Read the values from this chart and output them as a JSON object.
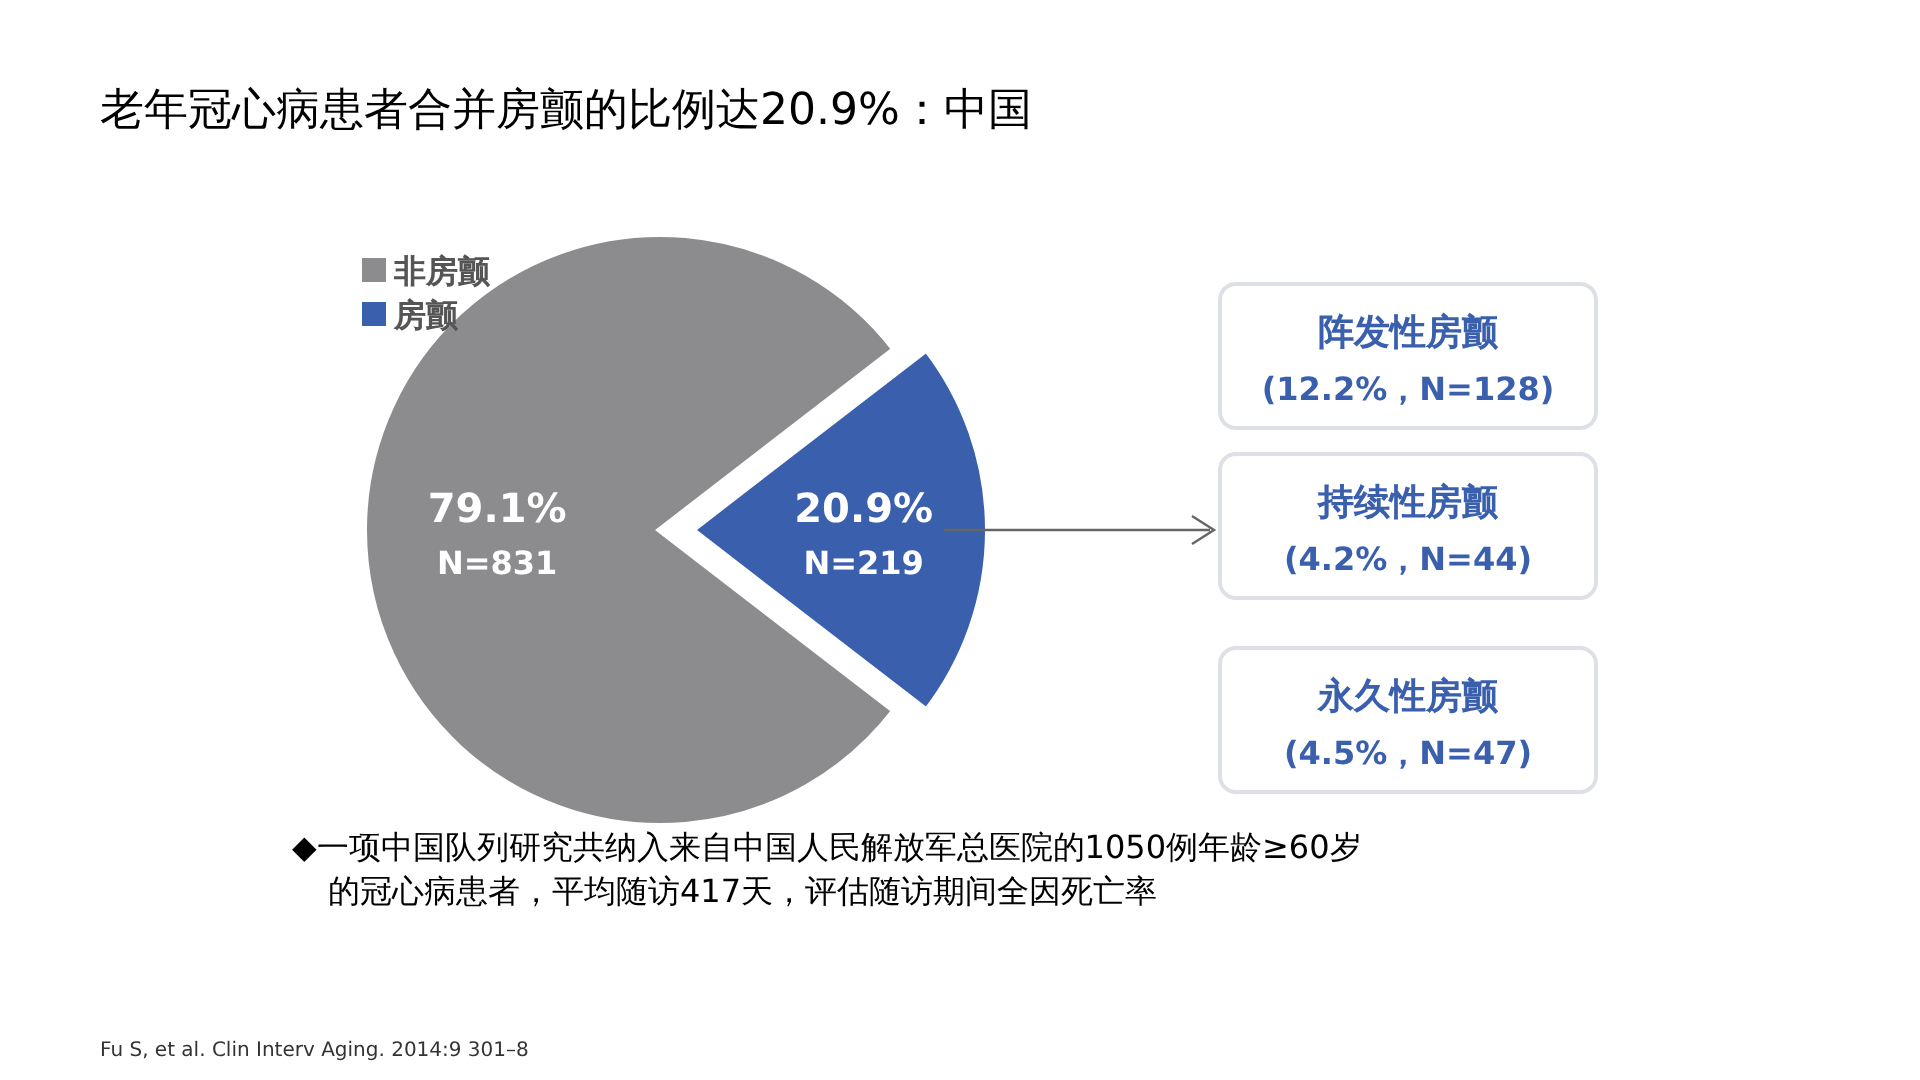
{
  "chart_data": {
    "type": "pie",
    "title": "老年冠心病患者合并房颤的比例达20.9%：中国",
    "categories": [
      "非房颤",
      "房颤"
    ],
    "values": [
      79.1,
      20.9
    ],
    "colors": [
      "#8c8c8e",
      "#3a5fad"
    ],
    "value_labels": [
      "79.1%",
      "20.9%"
    ],
    "legend": "top left",
    "annotations": [
      "N=831",
      "N=219",
      "阵发性房颤",
      "(12.2%，N=128)",
      "持续性房颤",
      "(4.2%，N=44)",
      "永久性房颤",
      "(4.5%，N=47)",
      "◆一项中国队列研究共纳入来自中国人民解放军总医院的1050例年龄≥60岁的冠心病患者，平均随访417天，评估随访期间全因死亡率",
      "Fu S, et al. Clin Interv Aging. 2014:9 301–8"
    ]
  }
}
